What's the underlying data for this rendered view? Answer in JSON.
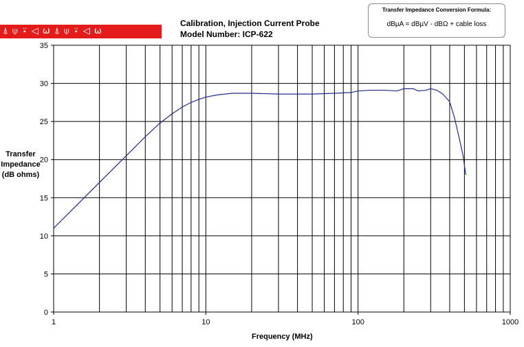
{
  "logo_strip": {
    "text": "⍋ ⍦ ⍣ ◁ ω ⍋ ⍦ ⍣ ◁ ω",
    "color": "#e41b1b"
  },
  "formula": {
    "title": "Transfer Impedance Conversion Formula:",
    "text": "dBµA = dBµV - dBΩ + cable loss"
  },
  "chart_data": {
    "type": "line",
    "title": "Calibration, Injection Current Probe",
    "subtitle": "Model Number: ICP-622",
    "xlabel": "Frequency (MHz)",
    "ylabel": [
      "Transfer",
      "Impedance",
      "(dB ohms)"
    ],
    "xscale": "log",
    "xlim": [
      1,
      1000
    ],
    "ylim": [
      0,
      35
    ],
    "xticks": [
      "1",
      "10",
      "100",
      "1000"
    ],
    "yticks": [
      "0",
      "5",
      "10",
      "15",
      "20",
      "25",
      "30",
      "35"
    ],
    "grid": true,
    "series": [
      {
        "color": "#1f2a8c",
        "x": [
          1,
          1.5,
          2,
          3,
          4,
          5,
          6,
          7,
          8,
          9,
          10,
          12,
          15,
          20,
          30,
          50,
          70,
          90,
          100,
          120,
          150,
          180,
          200,
          230,
          250,
          280,
          300,
          330,
          360,
          400,
          430,
          460,
          490,
          510
        ],
        "y": [
          11,
          14.5,
          17,
          20.5,
          23,
          24.8,
          26,
          26.9,
          27.5,
          27.9,
          28.2,
          28.5,
          28.7,
          28.7,
          28.6,
          28.6,
          28.7,
          28.8,
          29.0,
          29.1,
          29.1,
          29.0,
          29.3,
          29.3,
          29.0,
          29.1,
          29.3,
          29.1,
          28.6,
          27.6,
          25.5,
          23.0,
          20.5,
          18.0
        ]
      }
    ]
  }
}
